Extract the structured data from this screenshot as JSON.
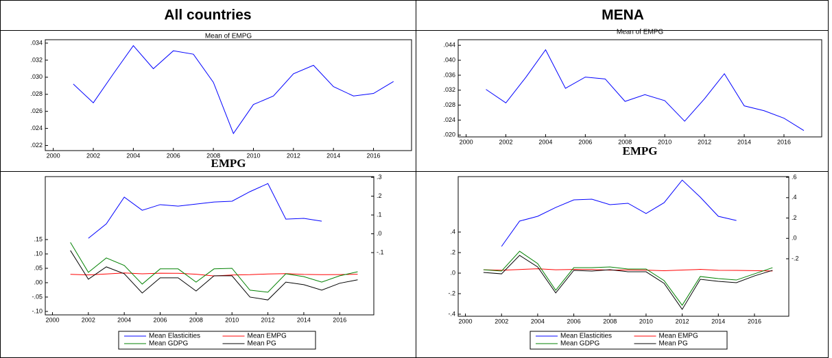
{
  "table": {
    "headers": [
      "All countries",
      "MENA"
    ]
  },
  "chart_data": [
    {
      "type": "line",
      "title": "Mean of EMPG",
      "xlabel": "EMPG",
      "x": [
        2001,
        2002,
        2003,
        2004,
        2005,
        2006,
        2007,
        2008,
        2009,
        2010,
        2011,
        2012,
        2013,
        2014,
        2015,
        2016,
        2017
      ],
      "values": [
        0.0292,
        0.027,
        0.0304,
        0.0337,
        0.031,
        0.0331,
        0.0327,
        0.0294,
        0.0234,
        0.0268,
        0.0278,
        0.0304,
        0.0314,
        0.0289,
        0.0278,
        0.0281,
        0.0295
      ],
      "color": "#0000ff",
      "xlim": [
        1999.6,
        2017.9
      ],
      "xticks": [
        2000,
        2002,
        2004,
        2006,
        2008,
        2010,
        2012,
        2014,
        2016
      ],
      "ylim": [
        0.0214,
        0.0344
      ],
      "yticks": [
        {
          "value": 0.022,
          "label": ".022"
        },
        {
          "value": 0.024,
          "label": ".024"
        },
        {
          "value": 0.026,
          "label": ".026"
        },
        {
          "value": 0.028,
          "label": ".028"
        },
        {
          "value": 0.03,
          "label": ".030"
        },
        {
          "value": 0.032,
          "label": ".032"
        },
        {
          "value": 0.034,
          "label": ".034"
        }
      ]
    },
    {
      "type": "line",
      "title": "Mean of EMPG",
      "xlabel": "EMPG",
      "x": [
        2001,
        2002,
        2003,
        2004,
        2005,
        2006,
        2007,
        2008,
        2009,
        2010,
        2011,
        2012,
        2013,
        2014,
        2015,
        2016,
        2017
      ],
      "values": [
        0.0322,
        0.0286,
        0.0354,
        0.0428,
        0.0325,
        0.0355,
        0.035,
        0.029,
        0.0308,
        0.0292,
        0.0237,
        0.0297,
        0.0364,
        0.0278,
        0.0265,
        0.0245,
        0.0212
      ],
      "color": "#0000ff",
      "xlim": [
        1999.6,
        2017.9
      ],
      "xticks": [
        2000,
        2002,
        2004,
        2006,
        2008,
        2010,
        2012,
        2014,
        2016
      ],
      "ylim": [
        0.0195,
        0.0455
      ],
      "yticks": [
        {
          "value": 0.02,
          "label": ".020"
        },
        {
          "value": 0.024,
          "label": ".024"
        },
        {
          "value": 0.028,
          "label": ".028"
        },
        {
          "value": 0.032,
          "label": ".032"
        },
        {
          "value": 0.036,
          "label": ".036"
        },
        {
          "value": 0.04,
          "label": ".040"
        },
        {
          "value": 0.044,
          "label": ".044"
        }
      ]
    },
    {
      "type": "line",
      "x": [
        2001,
        2002,
        2003,
        2004,
        2005,
        2006,
        2007,
        2008,
        2009,
        2010,
        2011,
        2012,
        2013,
        2014,
        2015,
        2016,
        2017
      ],
      "series": [
        {
          "name": "Mean Elasticities",
          "color": "#0000ff",
          "axis": "y2",
          "values": [
            null,
            -0.024,
            0.053,
            0.195,
            0.125,
            0.155,
            0.147,
            0.158,
            0.169,
            0.173,
            0.224,
            0.267,
            0.078,
            0.082,
            0.067,
            null,
            null
          ]
        },
        {
          "name": "Mean EMPG",
          "color": "#ff0000",
          "values": [
            0.0292,
            0.027,
            0.0304,
            0.0337,
            0.031,
            0.0331,
            0.0327,
            0.0294,
            0.0234,
            0.0268,
            0.0278,
            0.0304,
            0.0314,
            0.0289,
            0.0278,
            0.0281,
            0.0295
          ]
        },
        {
          "name": "Mean GDPG",
          "color": "#008000",
          "values": [
            0.14,
            0.036,
            0.086,
            0.06,
            -0.005,
            0.048,
            0.048,
            0.002,
            0.048,
            0.05,
            -0.026,
            -0.033,
            0.031,
            0.021,
            0.002,
            0.024,
            0.038
          ]
        },
        {
          "name": "Mean PG",
          "color": "#000000",
          "values": [
            0.112,
            0.012,
            0.055,
            0.031,
            -0.036,
            0.017,
            0.017,
            -0.029,
            0.024,
            0.024,
            -0.05,
            -0.06,
            0.002,
            -0.007,
            -0.026,
            -0.002,
            0.01
          ]
        }
      ],
      "xlim": [
        1999.6,
        2017.9
      ],
      "xticks": [
        2000,
        2002,
        2004,
        2006,
        2008,
        2010,
        2012,
        2014,
        2016
      ],
      "ylim": [
        -0.112,
        0.369
      ],
      "yticks": [
        {
          "value": -0.1,
          "label": "-.10"
        },
        {
          "value": -0.05,
          "label": "-.05"
        },
        {
          "value": 0,
          "label": ".00"
        },
        {
          "value": 0.05,
          "label": ".05"
        },
        {
          "value": 0.1,
          "label": ".10"
        },
        {
          "value": 0.15,
          "label": ".15"
        }
      ],
      "y2lim": [
        -0.431,
        0.304
      ],
      "y2ticks": [
        {
          "value": -0.1,
          "label": "-.1"
        },
        {
          "value": 0,
          "label": ".0"
        },
        {
          "value": 0.1,
          "label": ".1"
        },
        {
          "value": 0.2,
          "label": ".2"
        },
        {
          "value": 0.3,
          "label": ".3"
        }
      ]
    },
    {
      "type": "line",
      "x": [
        2001,
        2002,
        2003,
        2004,
        2005,
        2006,
        2007,
        2008,
        2009,
        2010,
        2011,
        2012,
        2013,
        2014,
        2015,
        2016,
        2017
      ],
      "series": [
        {
          "name": "Mean Elasticities",
          "color": "#0000ff",
          "axis": "y2",
          "values": [
            null,
            -0.079,
            0.17,
            0.217,
            0.304,
            0.378,
            0.385,
            0.331,
            0.345,
            0.244,
            0.351,
            0.573,
            0.405,
            0.217,
            0.176,
            null,
            null
          ]
        },
        {
          "name": "Mean EMPG",
          "color": "#ff0000",
          "values": [
            0.0322,
            0.0286,
            0.0354,
            0.0428,
            0.0325,
            0.0355,
            0.035,
            0.029,
            0.0308,
            0.0292,
            0.0237,
            0.0297,
            0.0364,
            0.0278,
            0.0265,
            0.0245,
            0.0212
          ]
        },
        {
          "name": "Mean GDPG",
          "color": "#008000",
          "values": [
            0.033,
            0.02,
            0.213,
            0.093,
            -0.167,
            0.053,
            0.053,
            0.06,
            0.04,
            0.04,
            -0.073,
            -0.313,
            -0.033,
            -0.053,
            -0.067,
            -0.007,
            0.053
          ]
        },
        {
          "name": "Mean PG",
          "color": "#000000",
          "values": [
            0.007,
            -0.007,
            0.173,
            0.06,
            -0.193,
            0.027,
            0.02,
            0.033,
            0.013,
            0.013,
            -0.1,
            -0.353,
            -0.06,
            -0.08,
            -0.093,
            -0.027,
            0.027
          ]
        }
      ],
      "xlim": [
        1999.6,
        2017.9
      ],
      "xticks": [
        2000,
        2002,
        2004,
        2006,
        2008,
        2010,
        2012,
        2014,
        2016
      ],
      "ylim": [
        -0.42,
        0.94
      ],
      "yticks": [
        {
          "value": -0.4,
          "label": "-.4"
        },
        {
          "value": -0.2,
          "label": "-.2"
        },
        {
          "value": 0,
          "label": ".0"
        },
        {
          "value": 0.2,
          "label": ".2"
        },
        {
          "value": 0.4,
          "label": ".4"
        }
      ],
      "y2lim": [
        -0.765,
        0.607
      ],
      "y2ticks": [
        {
          "value": -0.2,
          "label": "-.2"
        },
        {
          "value": 0,
          "label": ".0"
        },
        {
          "value": 0.2,
          "label": ".2"
        },
        {
          "value": 0.4,
          "label": ".4"
        },
        {
          "value": 0.6,
          "label": ".6"
        }
      ]
    }
  ]
}
